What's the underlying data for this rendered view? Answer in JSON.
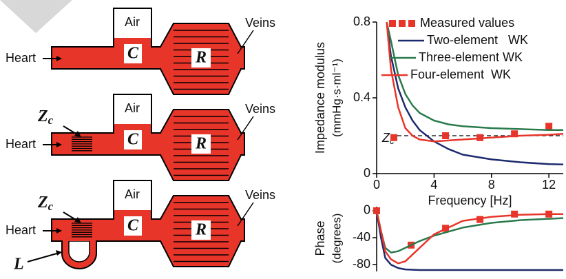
{
  "diagrams": [
    {
      "air": "Air",
      "compliance": "C",
      "resistance": "R",
      "inlet": "Heart",
      "outlet": "Veins"
    },
    {
      "air": "Air",
      "compliance": "C",
      "resistance": "R",
      "inlet": "Heart",
      "outlet": "Veins",
      "characteristic_impedance": {
        "symbol": "Z",
        "subscript": "c"
      }
    },
    {
      "air": "Air",
      "compliance": "C",
      "resistance": "R",
      "inlet": "Heart",
      "outlet": "Veins",
      "characteristic_impedance": {
        "symbol": "Z",
        "subscript": "c"
      },
      "inertance": "L"
    }
  ],
  "chart_data": [
    {
      "type": "line",
      "ylabel": [
        "Impedance modulus",
        "(mmHg·s·ml⁻¹)"
      ],
      "xlabel": "Frequency [Hz]",
      "xlim": [
        0,
        13
      ],
      "xticks": [
        0,
        4,
        8,
        12
      ],
      "ylim": [
        0,
        0.8
      ],
      "yticks": [
        0,
        0.4,
        0.8
      ],
      "annotation": {
        "symbol": "Z",
        "subscript": "c",
        "y": 0.2
      },
      "legend": "upper right",
      "series": [
        {
          "name": "Measured values",
          "color": "#e8352a",
          "marker": "square",
          "x": [
            1.2,
            4.8,
            7.2,
            9.6,
            12
          ],
          "values": [
            0.19,
            0.2,
            0.19,
            0.21,
            0.25
          ]
        },
        {
          "name": "Two-element   WK",
          "color": "#1c2a6e",
          "x": [
            0.7,
            1,
            1.5,
            2,
            2.5,
            3,
            4,
            5,
            6,
            8,
            10,
            12,
            13
          ],
          "values": [
            0.8,
            0.62,
            0.45,
            0.35,
            0.28,
            0.23,
            0.17,
            0.13,
            0.1,
            0.075,
            0.06,
            0.05,
            0.048
          ]
        },
        {
          "name": "Three-element WK",
          "color": "#2a7a4c",
          "x": [
            0.7,
            1,
            1.5,
            2,
            2.5,
            3,
            4,
            5,
            6,
            8,
            10,
            12,
            13
          ],
          "values": [
            0.8,
            0.7,
            0.52,
            0.42,
            0.36,
            0.32,
            0.28,
            0.26,
            0.25,
            0.24,
            0.235,
            0.23,
            0.23
          ]
        },
        {
          "name": "Four-element  WK",
          "color": "#e8352a",
          "x": [
            0.7,
            1,
            1.5,
            2,
            2.5,
            3,
            4,
            5,
            6,
            8,
            10,
            12,
            13
          ],
          "values": [
            0.8,
            0.55,
            0.35,
            0.24,
            0.2,
            0.18,
            0.17,
            0.175,
            0.18,
            0.19,
            0.2,
            0.205,
            0.21
          ]
        }
      ]
    },
    {
      "type": "line",
      "ylabel": [
        "Phase",
        "(degrees)"
      ],
      "xlim": [
        0,
        13
      ],
      "ylim": [
        -90,
        6
      ],
      "yticks": [
        0,
        -40,
        -80
      ],
      "series": [
        {
          "name": "Measured values",
          "color": "#e8352a",
          "marker": "square",
          "x": [
            0,
            2.4,
            4.8,
            7.2,
            9.6,
            12
          ],
          "values": [
            0,
            -51,
            -26,
            -13,
            -5,
            -5
          ]
        },
        {
          "name": "Two-element   WK",
          "color": "#1c2a6e",
          "x": [
            0,
            0.3,
            0.6,
            1,
            1.5,
            2,
            3,
            4,
            6,
            8,
            10,
            12,
            13
          ],
          "values": [
            0,
            -40,
            -70,
            -80,
            -85,
            -87,
            -88,
            -88,
            -88,
            -88,
            -88,
            -88,
            -88
          ]
        },
        {
          "name": "Three-element WK",
          "color": "#2a7a4c",
          "x": [
            0,
            0.3,
            0.6,
            1,
            1.5,
            2,
            3,
            4,
            6,
            8,
            10,
            12,
            13
          ],
          "values": [
            0,
            -30,
            -55,
            -62,
            -60,
            -55,
            -45,
            -37,
            -25,
            -18,
            -14,
            -12,
            -11
          ]
        },
        {
          "name": "Four-element  WK",
          "color": "#e8352a",
          "x": [
            0,
            0.3,
            0.6,
            1,
            1.5,
            2,
            3,
            4,
            6,
            8,
            10,
            12,
            13
          ],
          "values": [
            0,
            -30,
            -60,
            -72,
            -78,
            -75,
            -55,
            -35,
            -15,
            -9,
            -6,
            -5,
            -5
          ]
        }
      ]
    }
  ]
}
